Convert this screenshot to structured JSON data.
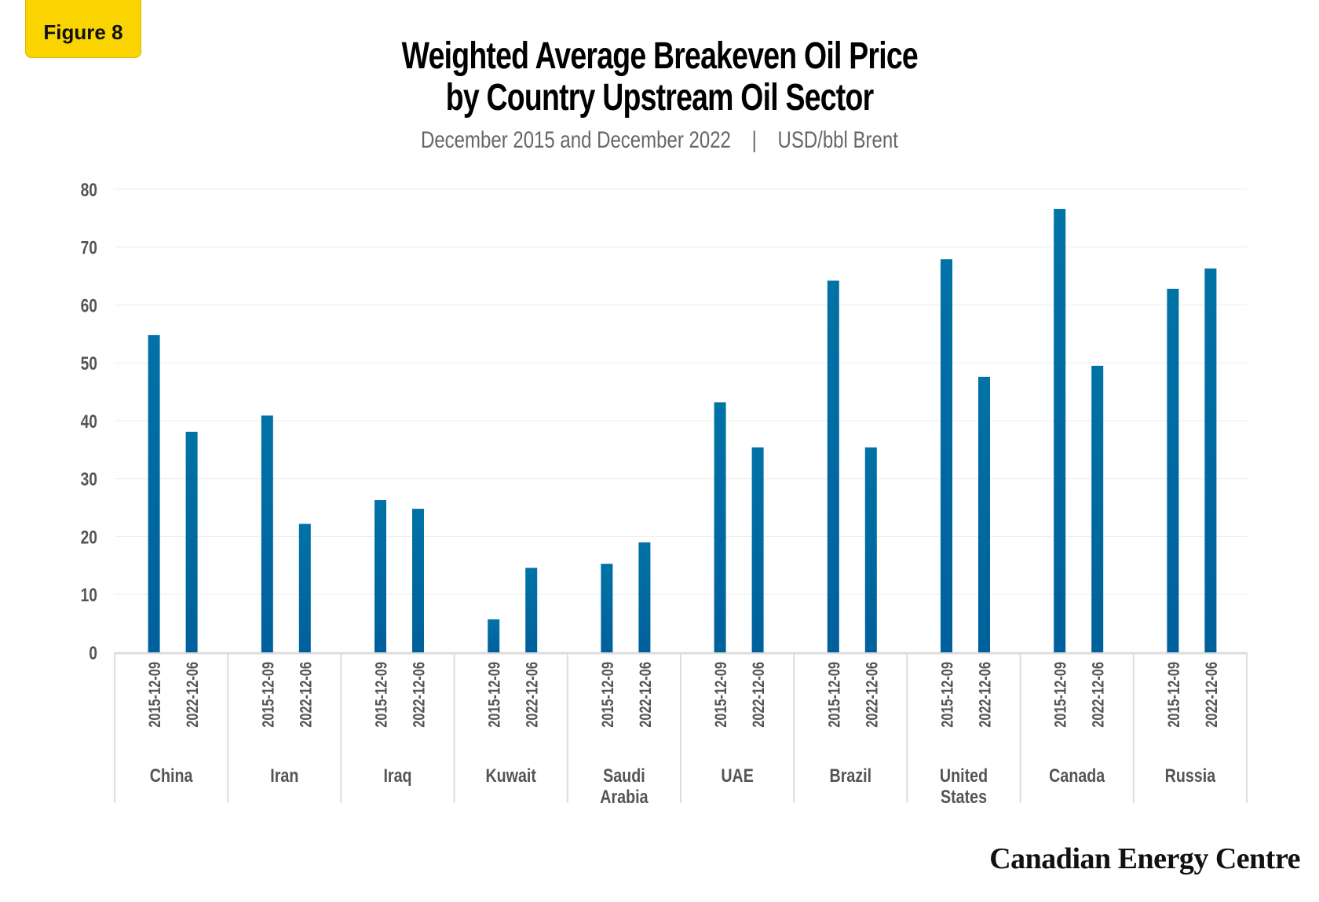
{
  "badge": "Figure 8",
  "chart_data": {
    "type": "bar",
    "title_line1": "Weighted Average Breakeven Oil Price",
    "title_line2": "by Country Upstream Oil Sector",
    "subtitle": "December 2015 and December 2022",
    "subtitle_sep": "|",
    "unit": "USD/bbl Brent",
    "categories": [
      "China",
      "Iran",
      "Iraq",
      "Kuwait",
      "Saudi Arabia",
      "UAE",
      "Brazil",
      "United States",
      "Canada",
      "Russia"
    ],
    "sub_categories": [
      "2015-12-09",
      "2022-12-06"
    ],
    "series": [
      {
        "values": [
          54.8,
          40.9,
          26.3,
          5.7,
          15.3,
          43.2,
          64.2,
          67.9,
          76.6,
          62.8
        ]
      },
      {
        "values": [
          38.1,
          22.2,
          24.8,
          14.6,
          19.0,
          35.4,
          35.4,
          47.6,
          49.5,
          66.3
        ]
      }
    ],
    "ylim": [
      0,
      80
    ],
    "yticks": [
      0,
      10,
      20,
      30,
      40,
      50,
      60,
      70,
      80
    ],
    "grid": true,
    "legend": "none",
    "bar_color": "#0068a0"
  },
  "logo": "Canadian Energy Centre"
}
